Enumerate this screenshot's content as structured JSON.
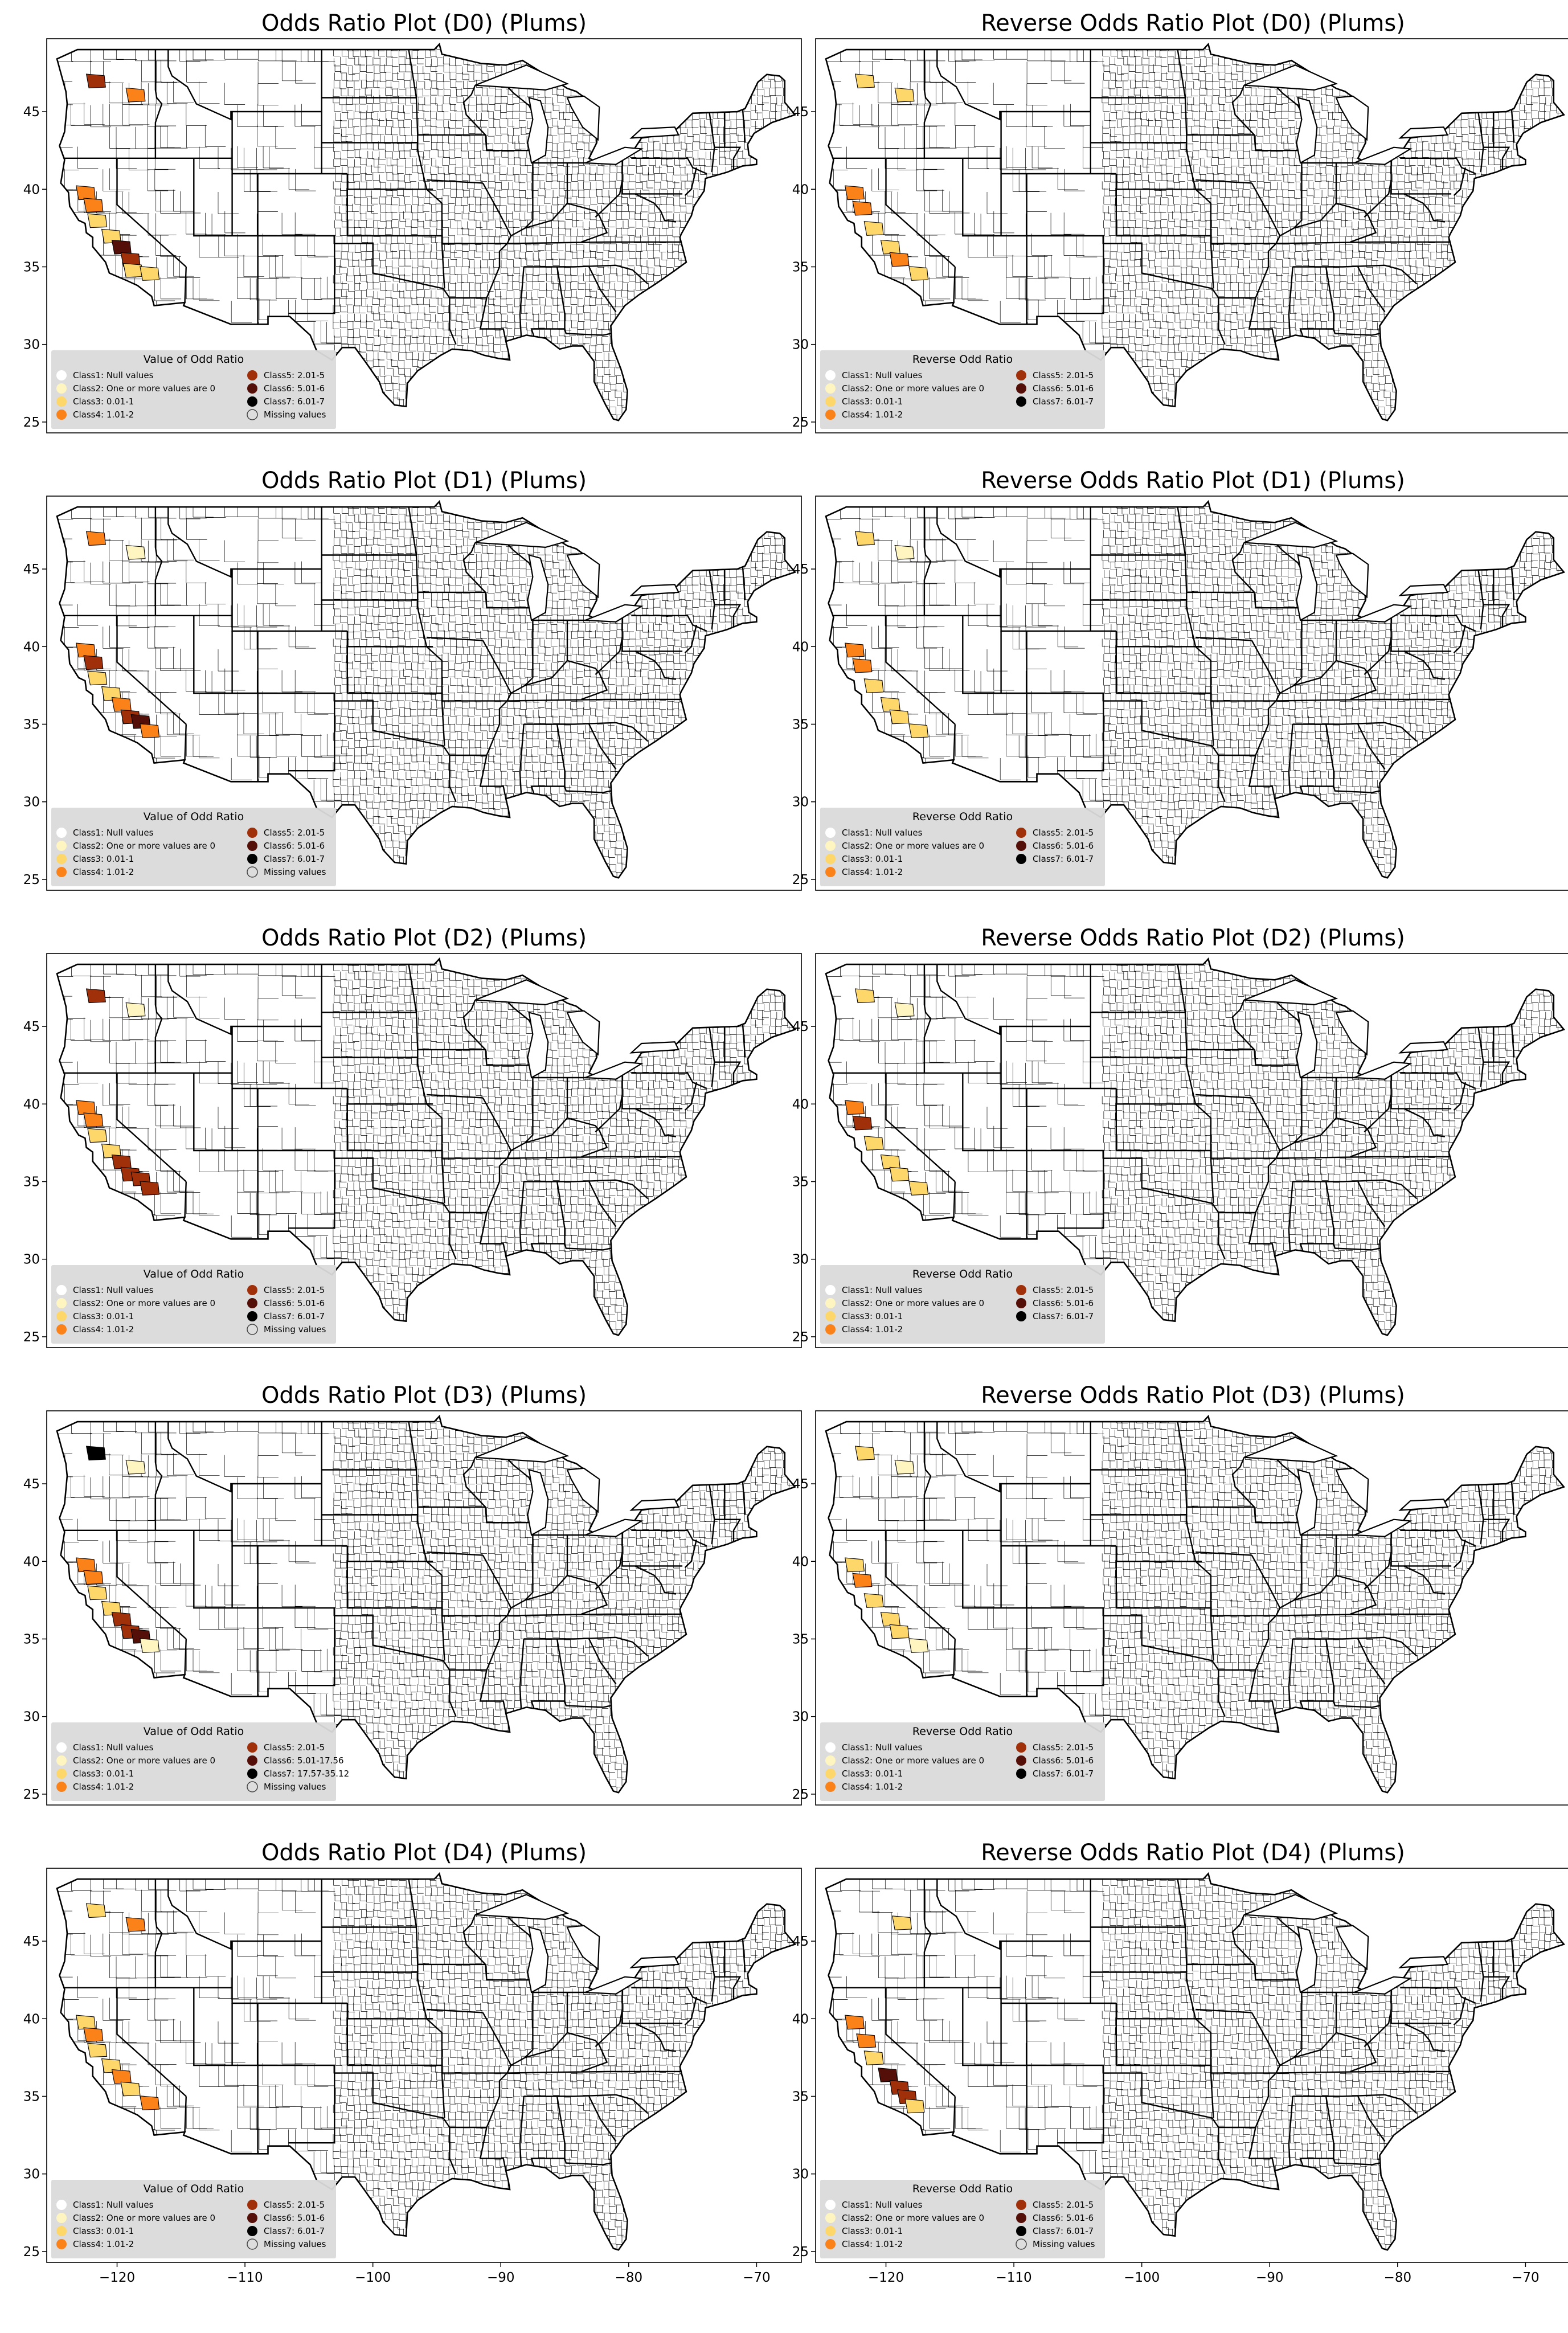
{
  "figure": {
    "panels": [
      {
        "title": "Odds Ratio Plot (D0) (Plums)",
        "legend_title": "Value of Odd Ratio",
        "legend": [
          "Class1: Null values",
          "Class2: One or more values are 0",
          "Class3: 0.01-1",
          "Class4: 1.01-2",
          "Class5: 2.01-5",
          "Class6: 5.01-6",
          "Class7: 6.01-7",
          "Missing values"
        ],
        "regions": [
          {
            "lon": -121.7,
            "lat": 47.0,
            "cls": 5
          },
          {
            "lon": -118.6,
            "lat": 46.1,
            "cls": 4
          },
          {
            "lon": -122.5,
            "lat": 39.8,
            "cls": 4
          },
          {
            "lon": -121.9,
            "lat": 39.0,
            "cls": 4
          },
          {
            "lon": -121.6,
            "lat": 38.0,
            "cls": 3
          },
          {
            "lon": -120.5,
            "lat": 37.0,
            "cls": 3
          },
          {
            "lon": -119.7,
            "lat": 36.3,
            "cls": 6
          },
          {
            "lon": -119.0,
            "lat": 35.5,
            "cls": 5
          },
          {
            "lon": -118.8,
            "lat": 34.8,
            "cls": 3
          },
          {
            "lon": -117.5,
            "lat": 34.6,
            "cls": 3
          }
        ]
      },
      {
        "title": "Reverse Odds Ratio Plot (D0) (Plums)",
        "legend_title": "Reverse Odd Ratio",
        "legend": [
          "Class1: Null values",
          "Class2: One or more values are 0",
          "Class3: 0.01-1",
          "Class4: 1.01-2",
          "Class5: 2.01-5",
          "Class6: 5.01-6",
          "Class7: 6.01-7"
        ],
        "regions": [
          {
            "lon": -121.7,
            "lat": 47.0,
            "cls": 3
          },
          {
            "lon": -118.6,
            "lat": 46.1,
            "cls": 3
          },
          {
            "lon": -122.5,
            "lat": 39.8,
            "cls": 4
          },
          {
            "lon": -121.9,
            "lat": 38.8,
            "cls": 4
          },
          {
            "lon": -121.0,
            "lat": 37.5,
            "cls": 3
          },
          {
            "lon": -119.7,
            "lat": 36.3,
            "cls": 3
          },
          {
            "lon": -119.0,
            "lat": 35.5,
            "cls": 4
          },
          {
            "lon": -117.5,
            "lat": 34.6,
            "cls": 3
          }
        ]
      },
      {
        "title": "Odds Ratio Plot (D1) (Plums)",
        "legend_title": "Value of Odd Ratio",
        "legend": [
          "Class1: Null values",
          "Class2: One or more values are 0",
          "Class3: 0.01-1",
          "Class4: 1.01-2",
          "Class5: 2.01-5",
          "Class6: 5.01-6",
          "Class7: 6.01-7",
          "Missing values"
        ],
        "regions": [
          {
            "lon": -121.7,
            "lat": 47.0,
            "cls": 4
          },
          {
            "lon": -118.6,
            "lat": 46.1,
            "cls": 2
          },
          {
            "lon": -122.5,
            "lat": 39.8,
            "cls": 4
          },
          {
            "lon": -121.9,
            "lat": 39.0,
            "cls": 5
          },
          {
            "lon": -121.6,
            "lat": 38.0,
            "cls": 3
          },
          {
            "lon": -120.5,
            "lat": 37.0,
            "cls": 3
          },
          {
            "lon": -119.7,
            "lat": 36.3,
            "cls": 4
          },
          {
            "lon": -119.0,
            "lat": 35.5,
            "cls": 5
          },
          {
            "lon": -118.2,
            "lat": 35.2,
            "cls": 6
          },
          {
            "lon": -117.5,
            "lat": 34.6,
            "cls": 4
          }
        ]
      },
      {
        "title": "Reverse Odds Ratio Plot (D1) (Plums)",
        "legend_title": "Reverse Odd Ratio",
        "legend": [
          "Class1: Null values",
          "Class2: One or more values are 0",
          "Class3: 0.01-1",
          "Class4: 1.01-2",
          "Class5: 2.01-5",
          "Class6: 5.01-6",
          "Class7: 6.01-7"
        ],
        "regions": [
          {
            "lon": -121.7,
            "lat": 47.0,
            "cls": 3
          },
          {
            "lon": -118.6,
            "lat": 46.1,
            "cls": 2
          },
          {
            "lon": -122.5,
            "lat": 39.8,
            "cls": 4
          },
          {
            "lon": -121.9,
            "lat": 38.8,
            "cls": 4
          },
          {
            "lon": -121.0,
            "lat": 37.5,
            "cls": 3
          },
          {
            "lon": -119.7,
            "lat": 36.3,
            "cls": 3
          },
          {
            "lon": -119.0,
            "lat": 35.5,
            "cls": 3
          },
          {
            "lon": -117.5,
            "lat": 34.6,
            "cls": 3
          }
        ]
      },
      {
        "title": "Odds Ratio Plot (D2) (Plums)",
        "legend_title": "Value of Odd Ratio",
        "legend": [
          "Class1: Null values",
          "Class2: One or more values are 0",
          "Class3: 0.01-1",
          "Class4: 1.01-2",
          "Class5: 2.01-5",
          "Class6: 5.01-6",
          "Class7: 6.01-7",
          "Missing values"
        ],
        "regions": [
          {
            "lon": -121.7,
            "lat": 47.0,
            "cls": 5
          },
          {
            "lon": -118.6,
            "lat": 46.1,
            "cls": 2
          },
          {
            "lon": -122.5,
            "lat": 39.8,
            "cls": 4
          },
          {
            "lon": -121.9,
            "lat": 39.0,
            "cls": 4
          },
          {
            "lon": -121.6,
            "lat": 38.0,
            "cls": 3
          },
          {
            "lon": -120.5,
            "lat": 37.0,
            "cls": 3
          },
          {
            "lon": -119.7,
            "lat": 36.3,
            "cls": 5
          },
          {
            "lon": -119.0,
            "lat": 35.5,
            "cls": 5
          },
          {
            "lon": -118.2,
            "lat": 35.2,
            "cls": 5
          },
          {
            "lon": -117.5,
            "lat": 34.6,
            "cls": 5
          }
        ]
      },
      {
        "title": "Reverse Odds Ratio Plot (D2) (Plums)",
        "legend_title": "Reverse Odd Ratio",
        "legend": [
          "Class1: Null values",
          "Class2: One or more values are 0",
          "Class3: 0.01-1",
          "Class4: 1.01-2",
          "Class5: 2.01-5",
          "Class6: 5.01-6",
          "Class7: 6.01-7"
        ],
        "regions": [
          {
            "lon": -121.7,
            "lat": 47.0,
            "cls": 3
          },
          {
            "lon": -118.6,
            "lat": 46.1,
            "cls": 2
          },
          {
            "lon": -122.5,
            "lat": 39.8,
            "cls": 4
          },
          {
            "lon": -121.9,
            "lat": 38.8,
            "cls": 5
          },
          {
            "lon": -121.0,
            "lat": 37.5,
            "cls": 3
          },
          {
            "lon": -119.7,
            "lat": 36.3,
            "cls": 3
          },
          {
            "lon": -119.0,
            "lat": 35.5,
            "cls": 3
          },
          {
            "lon": -117.5,
            "lat": 34.6,
            "cls": 3
          }
        ]
      },
      {
        "title": "Odds Ratio Plot (D3) (Plums)",
        "legend_title": "Value of Odd Ratio",
        "legend": [
          "Class1: Null values",
          "Class2: One or more values are 0",
          "Class3: 0.01-1",
          "Class4: 1.01-2",
          "Class5: 2.01-5",
          "Class6: 5.01-17.56",
          "Class7: 17.57-35.12",
          "Missing values"
        ],
        "regions": [
          {
            "lon": -121.7,
            "lat": 47.0,
            "cls": 7
          },
          {
            "lon": -118.6,
            "lat": 46.1,
            "cls": 2
          },
          {
            "lon": -122.5,
            "lat": 39.8,
            "cls": 4
          },
          {
            "lon": -121.9,
            "lat": 39.0,
            "cls": 4
          },
          {
            "lon": -121.6,
            "lat": 38.0,
            "cls": 3
          },
          {
            "lon": -120.5,
            "lat": 37.0,
            "cls": 3
          },
          {
            "lon": -119.7,
            "lat": 36.3,
            "cls": 5
          },
          {
            "lon": -119.0,
            "lat": 35.5,
            "cls": 5
          },
          {
            "lon": -118.2,
            "lat": 35.2,
            "cls": 6
          },
          {
            "lon": -117.5,
            "lat": 34.6,
            "cls": 2
          }
        ]
      },
      {
        "title": "Reverse Odds Ratio Plot (D3) (Plums)",
        "legend_title": "Reverse Odd Ratio",
        "legend": [
          "Class1: Null values",
          "Class2: One or more values are 0",
          "Class3: 0.01-1",
          "Class4: 1.01-2",
          "Class5: 2.01-5",
          "Class6: 5.01-6",
          "Class7: 6.01-7"
        ],
        "regions": [
          {
            "lon": -121.7,
            "lat": 47.0,
            "cls": 3
          },
          {
            "lon": -118.6,
            "lat": 46.1,
            "cls": 2
          },
          {
            "lon": -122.5,
            "lat": 39.8,
            "cls": 3
          },
          {
            "lon": -121.9,
            "lat": 38.8,
            "cls": 4
          },
          {
            "lon": -121.0,
            "lat": 37.5,
            "cls": 3
          },
          {
            "lon": -119.7,
            "lat": 36.3,
            "cls": 3
          },
          {
            "lon": -119.0,
            "lat": 35.5,
            "cls": 3
          },
          {
            "lon": -117.5,
            "lat": 34.6,
            "cls": 2
          }
        ]
      },
      {
        "title": "Odds Ratio Plot (D4) (Plums)",
        "legend_title": "Value of Odd Ratio",
        "legend": [
          "Class1: Null values",
          "Class2: One or more values are 0",
          "Class3: 0.01-1",
          "Class4: 1.01-2",
          "Class5: 2.01-5",
          "Class6: 5.01-6",
          "Class7: 6.01-7",
          "Missing values"
        ],
        "regions": [
          {
            "lon": -121.7,
            "lat": 47.0,
            "cls": 3
          },
          {
            "lon": -118.6,
            "lat": 46.1,
            "cls": 4
          },
          {
            "lon": -122.5,
            "lat": 39.8,
            "cls": 3
          },
          {
            "lon": -121.9,
            "lat": 39.0,
            "cls": 4
          },
          {
            "lon": -121.6,
            "lat": 38.0,
            "cls": 3
          },
          {
            "lon": -120.5,
            "lat": 37.0,
            "cls": 3
          },
          {
            "lon": -119.7,
            "lat": 36.3,
            "cls": 4
          },
          {
            "lon": -119.0,
            "lat": 35.5,
            "cls": 3
          },
          {
            "lon": -117.5,
            "lat": 34.6,
            "cls": 4
          }
        ]
      },
      {
        "title": "Reverse Odds Ratio Plot (D4) (Plums)",
        "legend_title": "Reverse Odd Ratio",
        "legend": [
          "Class1: Null values",
          "Class2: One or more values are 0",
          "Class3: 0.01-1",
          "Class4: 1.01-2",
          "Class5: 2.01-5",
          "Class6: 5.01-6",
          "Class7: 6.01-7",
          "Missing values"
        ],
        "regions": [
          {
            "lon": -118.8,
            "lat": 46.2,
            "cls": 3
          },
          {
            "lon": -122.5,
            "lat": 39.8,
            "cls": 4
          },
          {
            "lon": -121.6,
            "lat": 38.6,
            "cls": 4
          },
          {
            "lon": -121.0,
            "lat": 37.5,
            "cls": 3
          },
          {
            "lon": -119.9,
            "lat": 36.4,
            "cls": 6
          },
          {
            "lon": -119.0,
            "lat": 35.6,
            "cls": 5
          },
          {
            "lon": -118.4,
            "lat": 35.0,
            "cls": 5
          },
          {
            "lon": -117.8,
            "lat": 34.4,
            "cls": 3
          }
        ]
      }
    ],
    "x_ticks": [
      -120,
      -110,
      -100,
      -90,
      -80,
      -70
    ],
    "y_ticks": [
      25,
      30,
      35,
      40,
      45
    ],
    "xlim": [
      -125.5,
      -66.5
    ],
    "ylim": [
      24.3,
      49.7
    ],
    "class_colors": [
      "#ffffff",
      "#fff5c0",
      "#fed76a",
      "#fb8219",
      "#a0300a",
      "#541008",
      "#000000",
      "#dddddd"
    ],
    "legend_background": "#dadada"
  }
}
